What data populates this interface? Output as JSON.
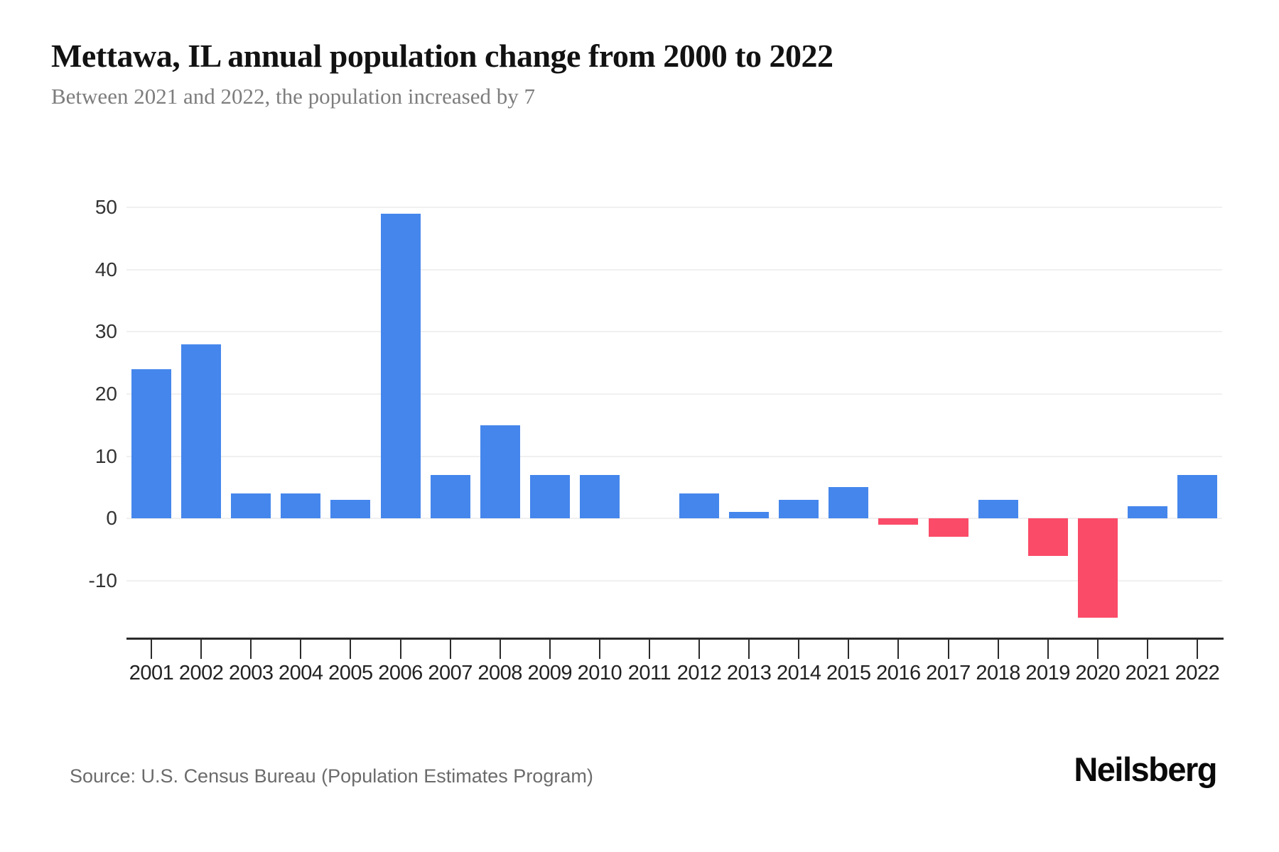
{
  "header": {
    "title": "Mettawa, IL annual population change from 2000 to 2022",
    "subtitle": "Between 2021 and 2022, the population increased by 7"
  },
  "footer": {
    "source": "Source: U.S. Census Bureau (Population Estimates Program)",
    "brand": "Neilsberg"
  },
  "chart_data": {
    "type": "bar",
    "title": "Mettawa, IL annual population change from 2000 to 2022",
    "subtitle": "Between 2021 and 2022, the population increased by 7",
    "categories": [
      "2001",
      "2002",
      "2003",
      "2004",
      "2005",
      "2006",
      "2007",
      "2008",
      "2009",
      "2010",
      "2011",
      "2012",
      "2013",
      "2014",
      "2015",
      "2016",
      "2017",
      "2018",
      "2019",
      "2020",
      "2021",
      "2022"
    ],
    "values": [
      24,
      28,
      4,
      4,
      3,
      49,
      7,
      15,
      7,
      7,
      0,
      4,
      1,
      3,
      5,
      -1,
      -3,
      3,
      -6,
      -16,
      2,
      7
    ],
    "xlabel": "",
    "ylabel": "",
    "ylim": [
      -19.4,
      57.1
    ],
    "yticks": [
      50,
      40,
      30,
      20,
      10,
      0,
      -10
    ],
    "grid": "horizontal",
    "legend": "none",
    "colors": {
      "positive": "#4586EC",
      "negative": "#FA4B68"
    }
  }
}
